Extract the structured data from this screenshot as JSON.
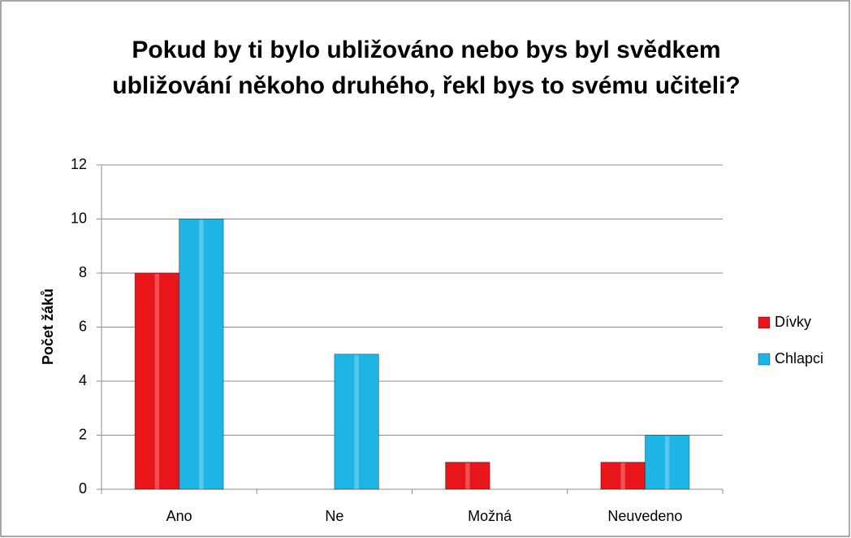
{
  "chart_data": {
    "type": "bar",
    "title": "Pokud by ti bylo ubližováno nebo bys byl svědkem ubližování někoho druhého, řekl bys to svému učiteli?",
    "y_label": "Počet žáků",
    "categories": [
      "Ano",
      "Ne",
      "Možná",
      "Neuvedeno"
    ],
    "series": [
      {
        "name": "Dívky",
        "color": "#e8161b",
        "values": [
          8,
          0,
          1,
          1
        ]
      },
      {
        "name": "Chlapci",
        "color": "#1fb4e6",
        "values": [
          10,
          5,
          0,
          2
        ]
      }
    ],
    "ylim": [
      0,
      12
    ],
    "yticks": [
      0,
      2,
      4,
      6,
      8,
      10,
      12
    ],
    "grid": true,
    "legend": "right"
  }
}
